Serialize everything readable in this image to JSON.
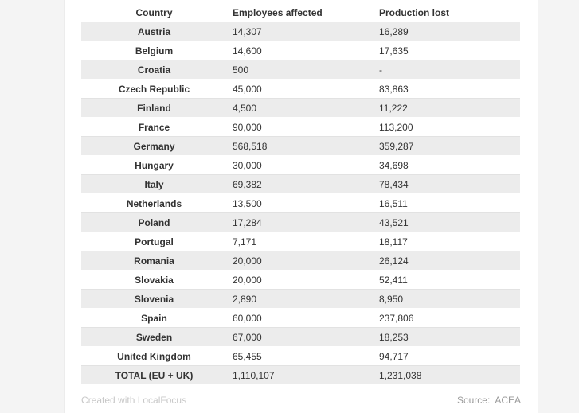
{
  "table": {
    "headers": {
      "country": "Country",
      "employees": "Employees affected",
      "production": "Production lost"
    },
    "rows": [
      {
        "country": "Austria",
        "employees": "14,307",
        "production": "16,289"
      },
      {
        "country": "Belgium",
        "employees": "14,600",
        "production": "17,635"
      },
      {
        "country": "Croatia",
        "employees": "500",
        "production": "-"
      },
      {
        "country": "Czech Republic",
        "employees": "45,000",
        "production": "83,863"
      },
      {
        "country": "Finland",
        "employees": "4,500",
        "production": "11,222"
      },
      {
        "country": "France",
        "employees": "90,000",
        "production": "113,200"
      },
      {
        "country": "Germany",
        "employees": "568,518",
        "production": "359,287"
      },
      {
        "country": "Hungary",
        "employees": "30,000",
        "production": "34,698"
      },
      {
        "country": "Italy",
        "employees": "69,382",
        "production": "78,434"
      },
      {
        "country": "Netherlands",
        "employees": "13,500",
        "production": "16,511"
      },
      {
        "country": "Poland",
        "employees": "17,284",
        "production": "43,521"
      },
      {
        "country": "Portugal",
        "employees": "7,171",
        "production": "18,117"
      },
      {
        "country": "Romania",
        "employees": "20,000",
        "production": "26,124"
      },
      {
        "country": "Slovakia",
        "employees": "20,000",
        "production": "52,411"
      },
      {
        "country": "Slovenia",
        "employees": "2,890",
        "production": "8,950"
      },
      {
        "country": "Spain",
        "employees": "60,000",
        "production": "237,806"
      },
      {
        "country": "Sweden",
        "employees": "67,000",
        "production": "18,253"
      },
      {
        "country": "United Kingdom",
        "employees": "65,455",
        "production": "94,717"
      },
      {
        "country": "TOTAL (EU + UK)",
        "employees": "1,110,107",
        "production": "1,231,038"
      }
    ]
  },
  "footer": {
    "credit": "Created with LocalFocus",
    "source": "Source:  ACEA"
  },
  "colors": {
    "stripe": "#ececec",
    "text": "#333333",
    "credit_text": "#c8c8c8",
    "source_text": "#9a9a9a"
  }
}
